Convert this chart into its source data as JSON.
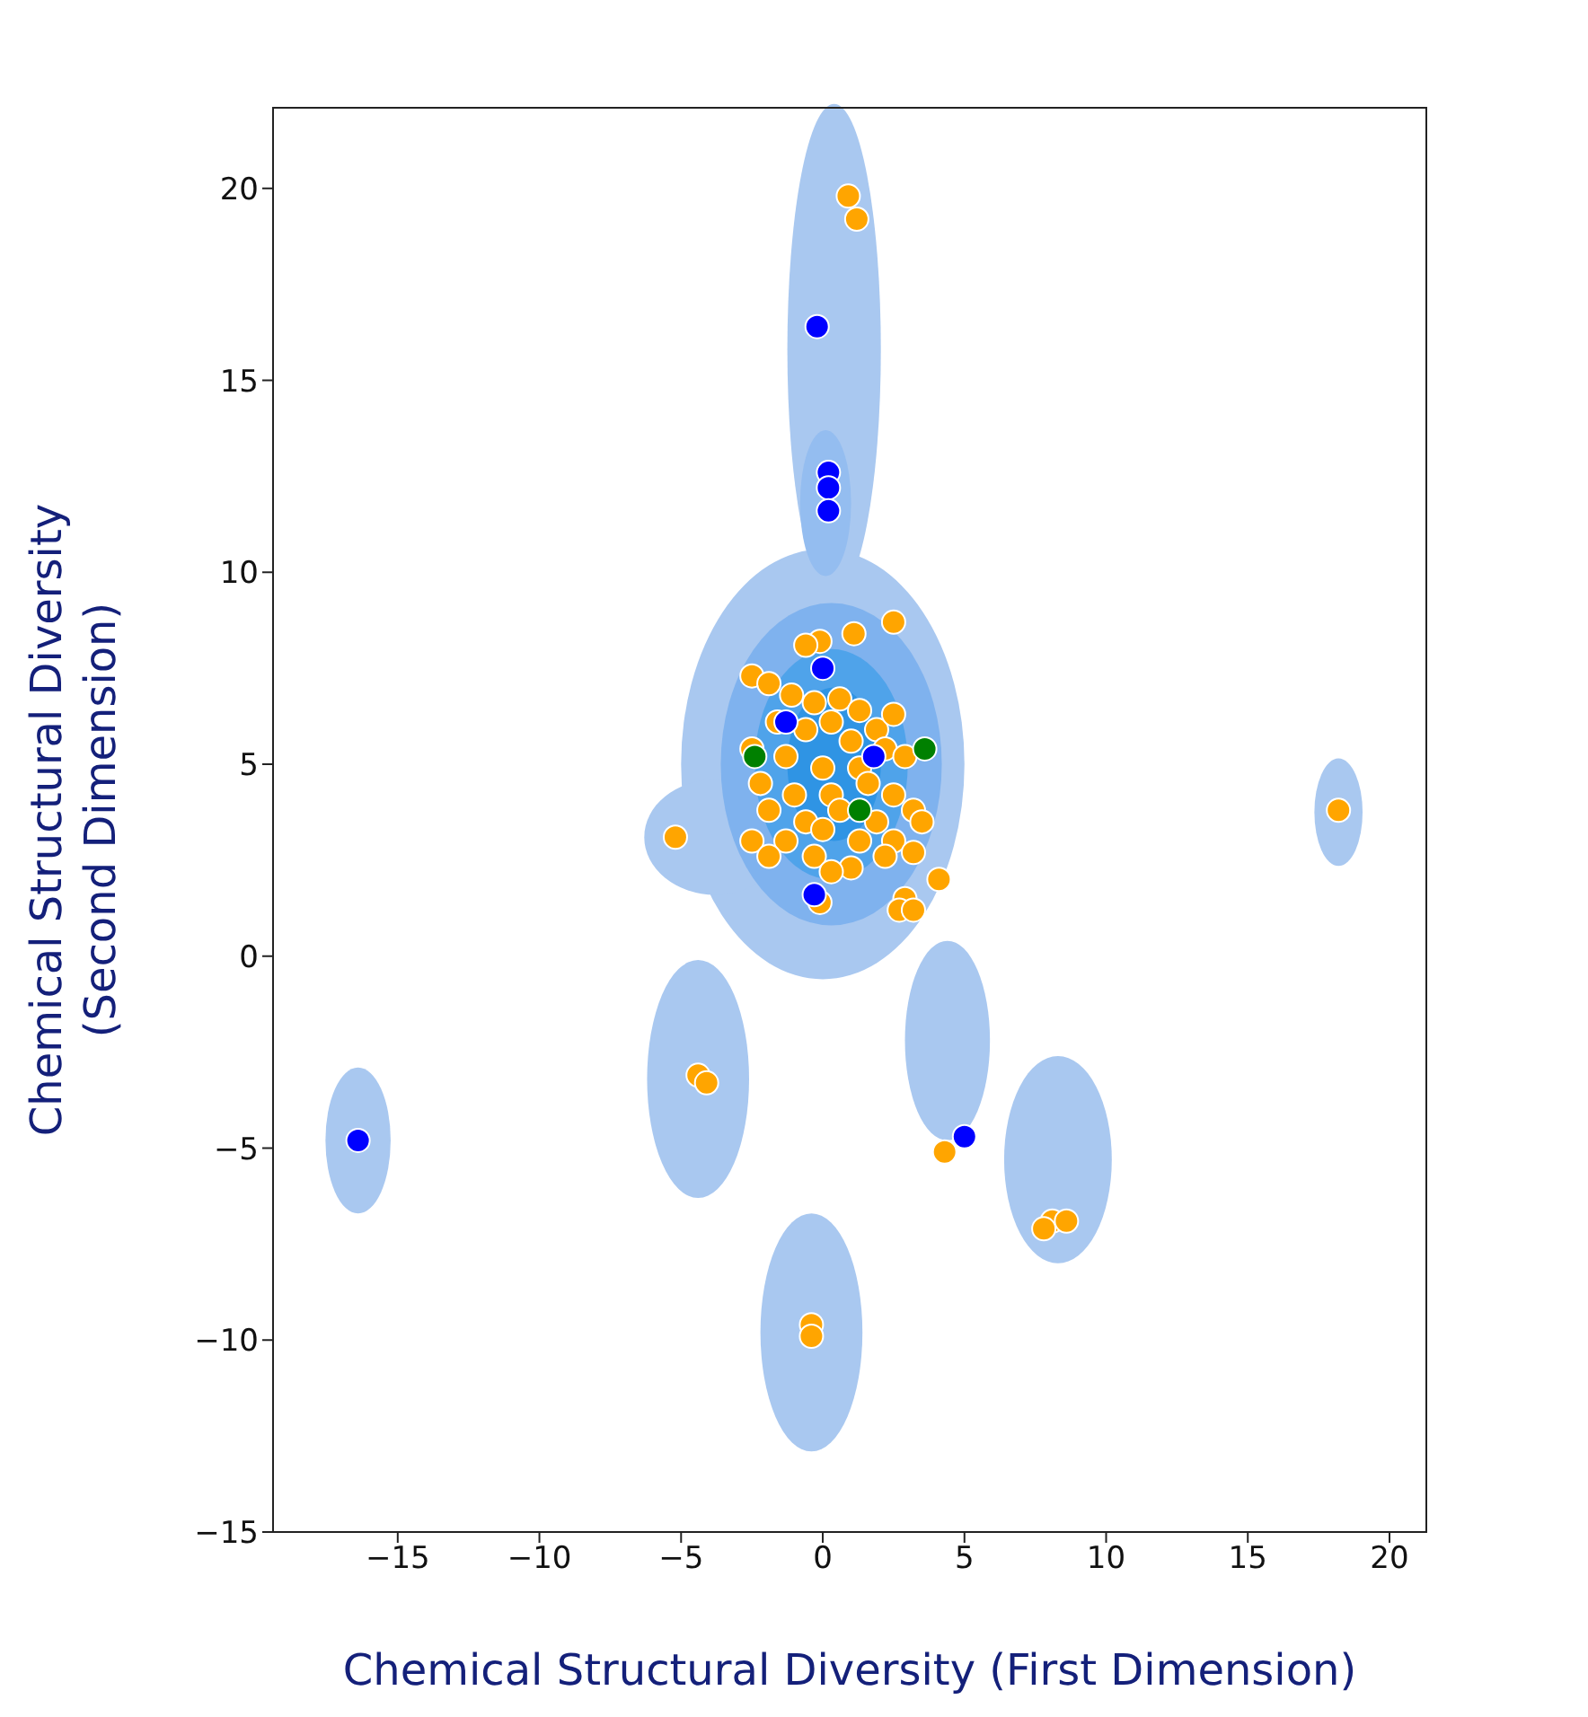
{
  "chart_data": {
    "type": "scatter",
    "xlabel": "Chemical Structural Diversity (First Dimension)",
    "ylabel": "Chemical Structural Diversity\n(Second Dimension)",
    "xlim": [
      -19.4,
      21.3
    ],
    "ylim": [
      -15,
      22.1
    ],
    "xticks": [
      {
        "value": -15,
        "label": "−15"
      },
      {
        "value": -10,
        "label": "−10"
      },
      {
        "value": -5,
        "label": "−5"
      },
      0,
      5,
      10,
      15,
      20
    ],
    "yticks": [
      {
        "value": -15,
        "label": "−15"
      },
      {
        "value": -10,
        "label": "−10"
      },
      {
        "value": -5,
        "label": "−5"
      },
      0,
      5,
      10,
      15,
      20
    ],
    "grid": false,
    "legend": false,
    "marker": "circle",
    "series": [
      {
        "color": "#ffa500",
        "x": [
          0.9,
          1.2,
          2.5,
          -0.1,
          1.1,
          -0.6,
          -2.5,
          -1.9,
          -1.1,
          -0.3,
          0.6,
          1.3,
          0.3,
          -1.6,
          -0.6,
          1.0,
          1.9,
          2.5,
          -2.5,
          -1.3,
          0.0,
          1.3,
          2.2,
          2.9,
          -2.2,
          -1.0,
          0.3,
          1.6,
          2.5,
          -1.9,
          -0.6,
          0.6,
          1.9,
          3.2,
          -2.5,
          -1.3,
          0.0,
          1.3,
          2.5,
          3.5,
          -1.9,
          -0.3,
          1.0,
          2.2,
          3.2,
          0.3,
          4.1,
          2.9,
          2.7,
          3.2,
          -0.1,
          -5.2,
          18.2,
          -4.4,
          -4.1,
          4.3,
          8.1,
          7.8,
          8.6,
          -0.4,
          -0.4
        ],
        "values": [
          19.8,
          19.2,
          8.7,
          8.2,
          8.4,
          8.1,
          7.3,
          7.1,
          6.8,
          6.6,
          6.7,
          6.4,
          6.1,
          6.1,
          5.9,
          5.6,
          5.9,
          6.3,
          5.4,
          5.2,
          4.9,
          4.9,
          5.4,
          5.2,
          4.5,
          4.2,
          4.2,
          4.5,
          4.2,
          3.8,
          3.5,
          3.8,
          3.5,
          3.8,
          3.0,
          3.0,
          3.3,
          3.0,
          3.0,
          3.5,
          2.6,
          2.6,
          2.3,
          2.6,
          2.7,
          2.2,
          2.0,
          1.5,
          1.2,
          1.2,
          1.4,
          3.1,
          3.8,
          -3.1,
          -3.3,
          -5.1,
          -6.9,
          -7.1,
          -6.9,
          -9.6,
          -9.9
        ]
      },
      {
        "color": "#0000ff",
        "x": [
          -0.2,
          0.2,
          0.2,
          0.2,
          -16.4,
          5.0,
          1.8,
          0.0,
          -0.3,
          -1.3
        ],
        "values": [
          16.4,
          12.6,
          12.2,
          11.6,
          -4.8,
          -4.7,
          5.2,
          7.5,
          1.6,
          6.1
        ]
      },
      {
        "color": "#008000",
        "x": [
          3.6,
          1.3,
          -2.4
        ],
        "values": [
          5.4,
          3.8,
          5.2
        ]
      }
    ]
  }
}
